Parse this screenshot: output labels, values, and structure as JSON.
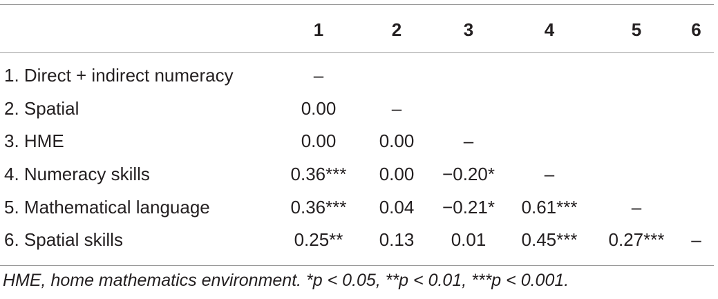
{
  "table": {
    "headers": [
      "",
      "1",
      "2",
      "3",
      "4",
      "5",
      "6"
    ],
    "rows": [
      {
        "label": "1. Direct + indirect numeracy",
        "cells": [
          "–",
          "",
          "",
          "",
          "",
          ""
        ]
      },
      {
        "label": "2. Spatial",
        "cells": [
          "0.00",
          "–",
          "",
          "",
          "",
          ""
        ]
      },
      {
        "label": "3. HME",
        "cells": [
          "0.00",
          "0.00",
          "–",
          "",
          "",
          ""
        ]
      },
      {
        "label": "4. Numeracy skills",
        "cells": [
          "0.36***",
          "0.00",
          "−0.20*",
          "–",
          "",
          ""
        ]
      },
      {
        "label": "5. Mathematical language",
        "cells": [
          "0.36***",
          "0.04",
          "−0.21*",
          "0.61***",
          "–",
          ""
        ]
      },
      {
        "label": "6. Spatial skills",
        "cells": [
          "0.25**",
          "0.13",
          "0.01",
          "0.45***",
          "0.27***",
          "–"
        ]
      }
    ]
  },
  "note": "HME, home mathematics environment. *p < 0.05, **p < 0.01, ***p < 0.001."
}
